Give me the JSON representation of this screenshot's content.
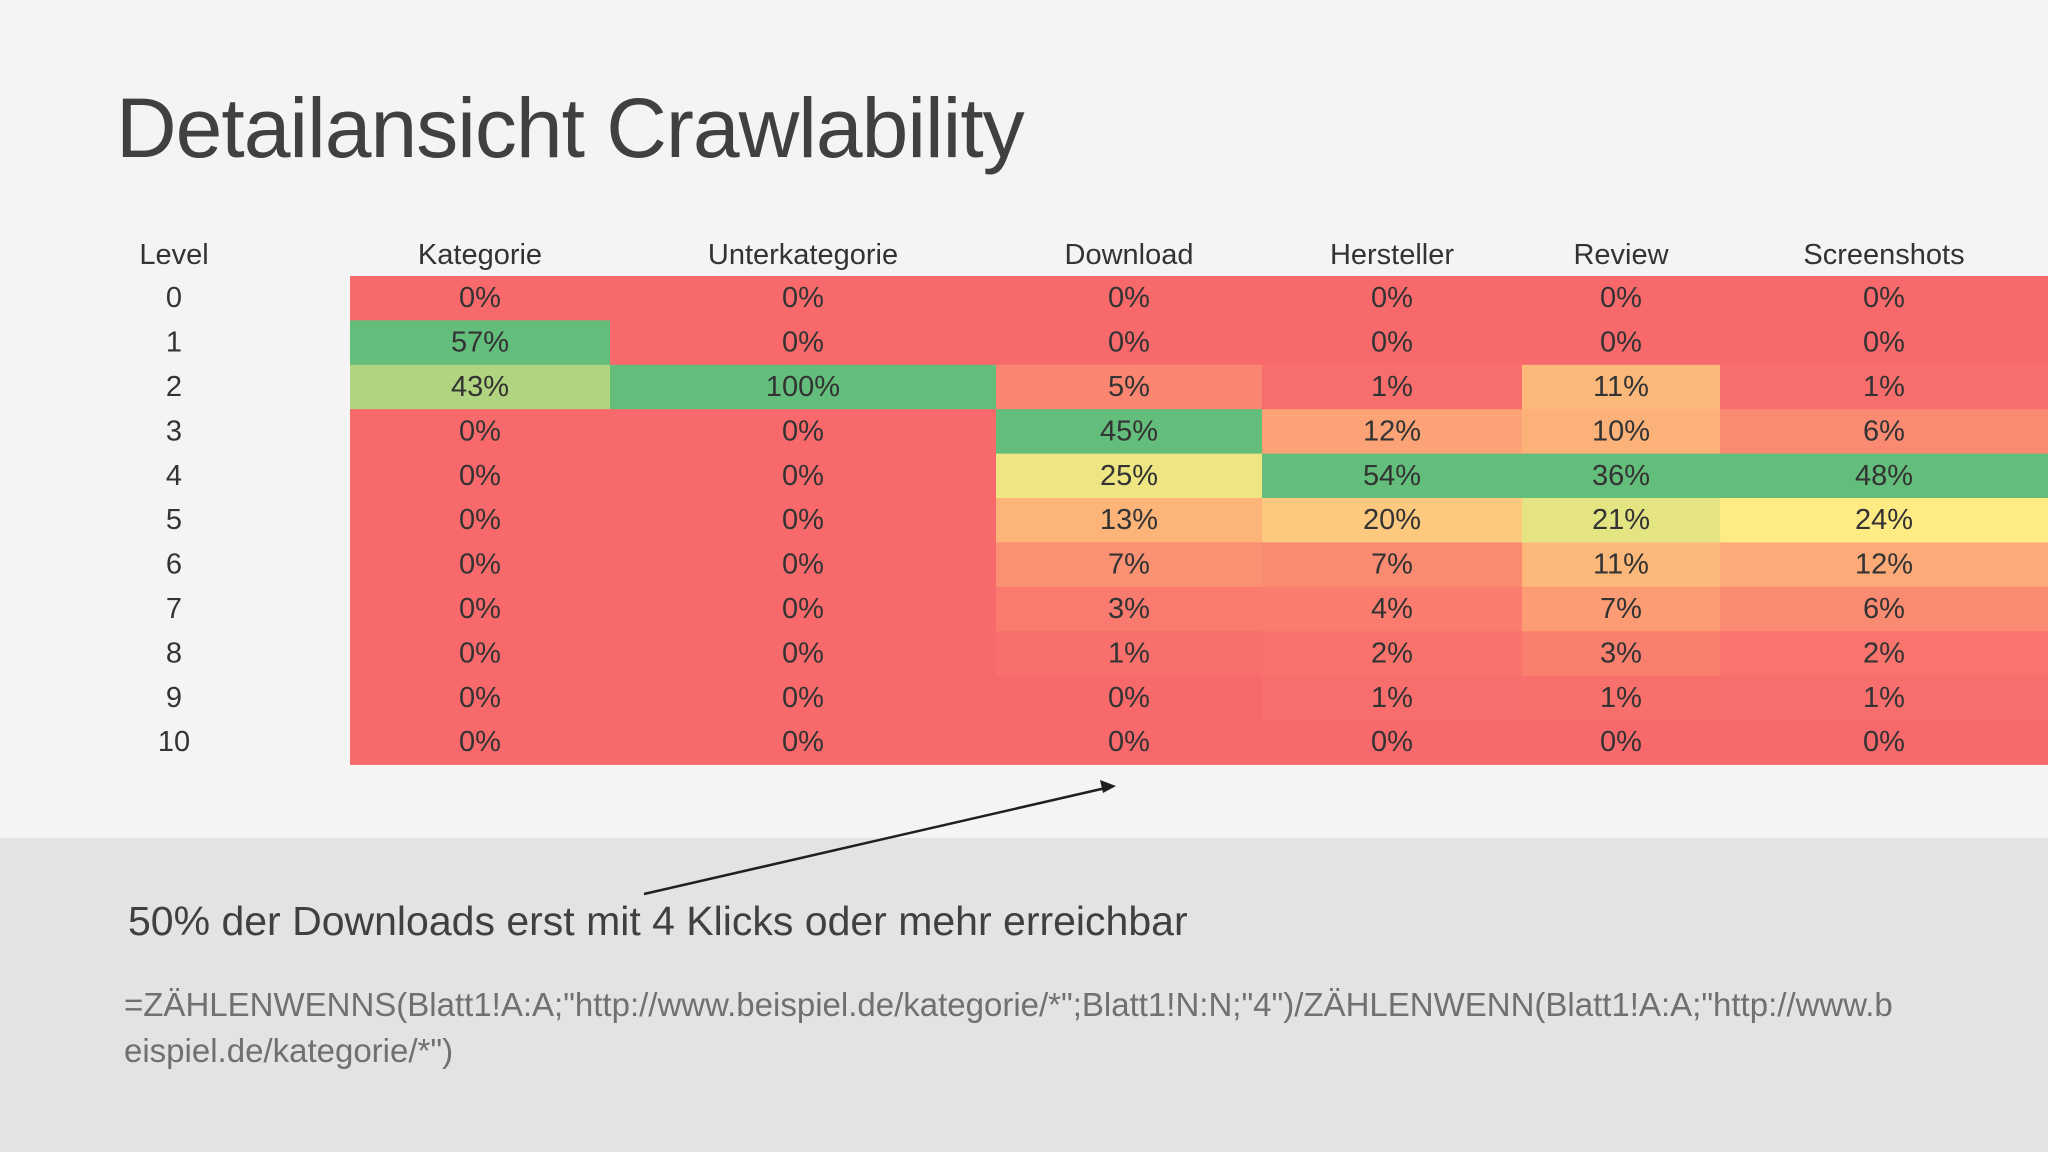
{
  "slide": {
    "title": "Detailansicht Crawlability",
    "caption": "50% der Downloads erst mit 4 Klicks oder mehr erreichbar",
    "formula": "=ZÄHLENWENNS(Blatt1!A:A;\"http://www.beispiel.de/kategorie/*\";Blatt1!N:N;\"4\")/ZÄHLENWENN(Blatt1!A:A;\"http://www.beispiel.de/kategorie/*\")"
  },
  "chart_data": {
    "type": "heatmap",
    "row_header": "Level",
    "rows": [
      "0",
      "1",
      "2",
      "3",
      "4",
      "5",
      "6",
      "7",
      "8",
      "9",
      "10"
    ],
    "columns": [
      "Kategorie",
      "Unterkategorie",
      "Download",
      "Hersteller",
      "Review",
      "Screenshots"
    ],
    "values": [
      [
        0,
        0,
        0,
        0,
        0,
        0
      ],
      [
        57,
        0,
        0,
        0,
        0,
        0
      ],
      [
        43,
        100,
        5,
        1,
        11,
        1
      ],
      [
        0,
        0,
        45,
        12,
        10,
        6
      ],
      [
        0,
        0,
        25,
        54,
        36,
        48
      ],
      [
        0,
        0,
        13,
        20,
        21,
        24
      ],
      [
        0,
        0,
        7,
        7,
        11,
        12
      ],
      [
        0,
        0,
        3,
        4,
        7,
        6
      ],
      [
        0,
        0,
        1,
        2,
        3,
        2
      ],
      [
        0,
        0,
        0,
        1,
        1,
        1
      ],
      [
        0,
        0,
        0,
        0,
        0,
        0
      ]
    ],
    "value_suffix": "%",
    "color_scale": {
      "low": "#f8696b",
      "mid": "#ffeb84",
      "high": "#63be7b",
      "scope": "per-column"
    }
  },
  "colors": {
    "title": "#404040",
    "cell_text": "#333333",
    "arrow": "#1f1f1f",
    "footer_band": "#e3e3e3"
  }
}
